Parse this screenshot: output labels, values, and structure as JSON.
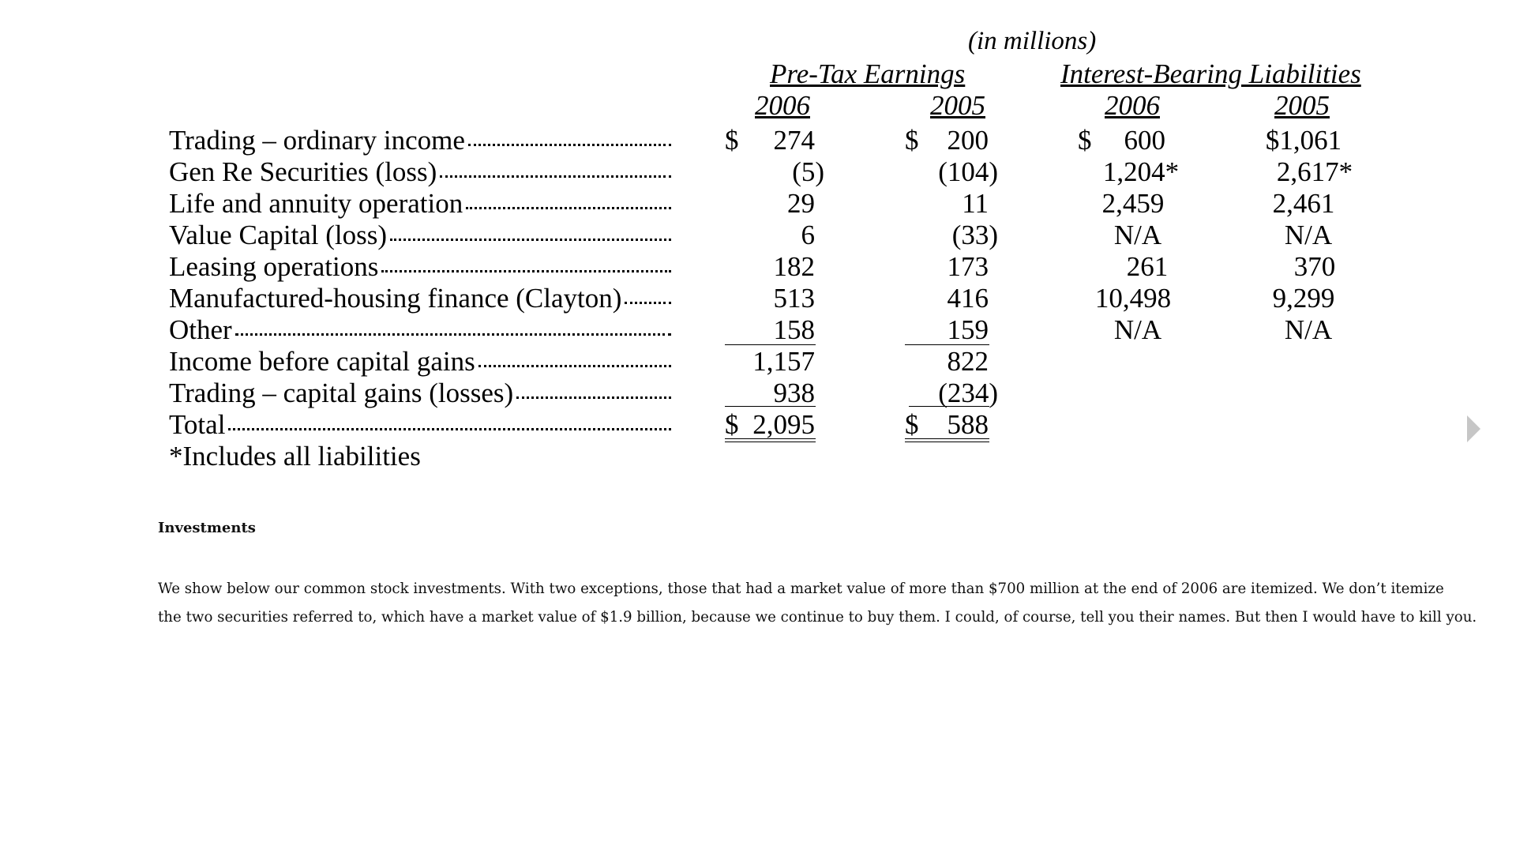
{
  "table": {
    "units": "(in millions)",
    "groups": [
      "Pre-Tax Earnings",
      "Interest-Bearing Liabilities"
    ],
    "years": [
      "2006",
      "2005",
      "2006",
      "2005"
    ],
    "currency_symbol": "$",
    "rows": [
      {
        "label": "Trading – ordinary income",
        "pte2006": "274",
        "pte2005": "200",
        "ibl2006": "600",
        "ibl2005": "$1,061"
      },
      {
        "label": "Gen Re Securities (loss)",
        "pte2006": "(5)",
        "pte2005": "(104)",
        "ibl2006": "1,204*",
        "ibl2005": "2,617*"
      },
      {
        "label": "Life and annuity operation",
        "pte2006": "29",
        "pte2005": "11",
        "ibl2006": "2,459",
        "ibl2005": "2,461"
      },
      {
        "label": "Value Capital (loss)",
        "pte2006": "6",
        "pte2005": "(33)",
        "ibl2006": "N/A",
        "ibl2005": "N/A"
      },
      {
        "label": "Leasing operations",
        "pte2006": "182",
        "pte2005": "173",
        "ibl2006": "261",
        "ibl2005": "370"
      },
      {
        "label": "Manufactured-housing finance (Clayton)",
        "pte2006": "513",
        "pte2005": "416",
        "ibl2006": "10,498",
        "ibl2005": "9,299"
      },
      {
        "label": "Other",
        "pte2006": "158",
        "pte2005": "159",
        "ibl2006": "N/A",
        "ibl2005": "N/A"
      },
      {
        "label": "Income before capital gains",
        "pte2006": "1,157",
        "pte2005": "822",
        "ibl2006": "",
        "ibl2005": ""
      },
      {
        "label": "Trading – capital gains (losses)",
        "pte2006": "938",
        "pte2005": "(234)",
        "ibl2006": "",
        "ibl2005": ""
      },
      {
        "label": "Total",
        "pte2006": "2,095",
        "pte2005": "588",
        "ibl2006": "",
        "ibl2005": ""
      }
    ],
    "footnote": "*Includes all liabilities"
  },
  "section": {
    "heading": "Investments",
    "paragraph_lines": [
      "We show below our common stock investments. With two exceptions, those that had a market value of more than $700 million at the end of 2006 are itemized. We don’t itemize",
      "the two securities referred to, which have a market value of $1.9 billion, because we continue to buy them. I could, of course, tell you their names. But then I would have to kill you."
    ]
  },
  "icons": {
    "next_page": "next-arrow-icon",
    "arrow_color": "#c6c6c6"
  }
}
